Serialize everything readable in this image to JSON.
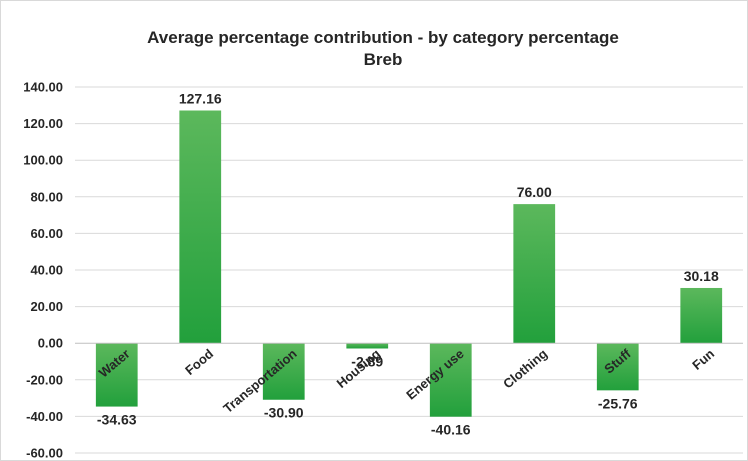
{
  "chart_data": {
    "type": "bar",
    "title": "Average percentage contribution - by category percentage",
    "subtitle": "Breb",
    "categories": [
      "Water",
      "Food",
      "Transportation",
      "Housing",
      "Energy use",
      "Clothing",
      "Stuff",
      "Fun"
    ],
    "values": [
      -34.63,
      127.16,
      -30.9,
      -2.89,
      -40.16,
      76.0,
      -25.76,
      30.18
    ],
    "data_labels": [
      "-34.63",
      "127.16",
      "-30.90",
      "-2.89",
      "-40.16",
      "76.00",
      "-25.76",
      "30.18"
    ],
    "ylim": [
      -60,
      140
    ],
    "yticks": [
      140,
      120,
      100,
      80,
      60,
      40,
      20,
      0,
      -20,
      -40,
      -60
    ],
    "ytick_labels": [
      "140.00",
      "120.00",
      "100.00",
      "80.00",
      "60.00",
      "40.00",
      "20.00",
      "0.00",
      "-20.00",
      "-40.00",
      "-60.00"
    ],
    "xlabel": "",
    "ylabel": "",
    "grid": true,
    "legend": "none",
    "colors": {
      "bar_top": "#5cb85c",
      "bar_bottom": "#22a03c",
      "text": "#262626",
      "grid": "#d9d9d9"
    }
  }
}
